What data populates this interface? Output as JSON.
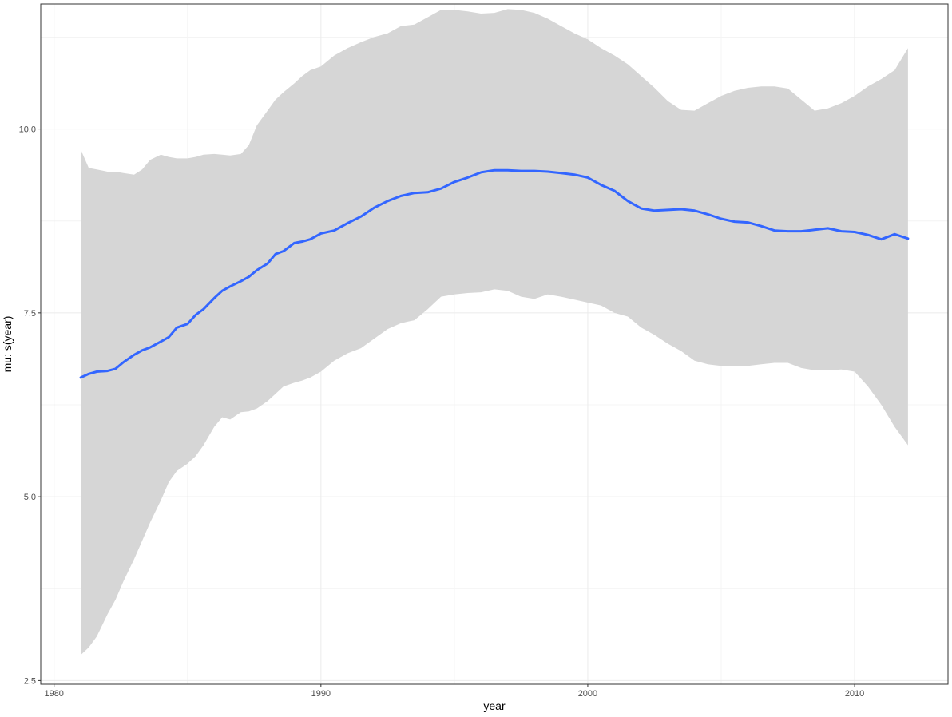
{
  "chart_data": {
    "type": "line",
    "title": "",
    "xlabel": "year",
    "ylabel": "mu: s(year)",
    "xlim": [
      1979.5,
      2013.5
    ],
    "ylim": [
      2.45,
      11.7
    ],
    "x_ticks": [
      1980,
      1990,
      2000,
      2010
    ],
    "x_tick_labels": [
      "1980",
      "1990",
      "2000",
      "2010"
    ],
    "y_ticks": [
      2.5,
      5.0,
      7.5,
      10.0
    ],
    "y_tick_labels": [
      "2.5",
      "5.0",
      "7.5",
      "10.0"
    ],
    "grid": true,
    "legend": "none",
    "colors": {
      "line": "#3366ff",
      "ribbon": "#d6d6d6",
      "grid_major": "#ebebeb",
      "grid_minor": "#f4f4f4",
      "panel_border": "#333333"
    },
    "series": [
      {
        "x": [
          1981,
          1981.3,
          1981.6,
          1982,
          1982.3,
          1982.6,
          1983,
          1983.3,
          1983.6,
          1984,
          1984.3,
          1984.6,
          1985,
          1985.3,
          1985.6,
          1986,
          1986.3,
          1986.6,
          1987,
          1987.3,
          1987.6,
          1988,
          1988.3,
          1988.6,
          1989,
          1989.3,
          1989.6,
          1990,
          1990.5,
          1991,
          1991.5,
          1992,
          1992.5,
          1993,
          1993.5,
          1994,
          1994.5,
          1995,
          1995.5,
          1996,
          1996.5,
          1997,
          1997.5,
          1998,
          1998.5,
          1999,
          1999.5,
          2000,
          2000.5,
          2001,
          2001.5,
          2002,
          2002.5,
          2003,
          2003.5,
          2004,
          2004.5,
          2005,
          2005.5,
          2006,
          2006.5,
          2007,
          2007.5,
          2008,
          2008.5,
          2009,
          2009.5,
          2010,
          2010.5,
          2011,
          2011.5,
          2012
        ],
        "y": [
          6.62,
          6.67,
          6.7,
          6.71,
          6.74,
          6.83,
          6.93,
          6.99,
          7.03,
          7.11,
          7.17,
          7.3,
          7.35,
          7.47,
          7.55,
          7.7,
          7.8,
          7.86,
          7.93,
          7.99,
          8.08,
          8.17,
          8.3,
          8.34,
          8.45,
          8.47,
          8.5,
          8.58,
          8.62,
          8.72,
          8.81,
          8.93,
          9.02,
          9.09,
          9.13,
          9.14,
          9.19,
          9.28,
          9.34,
          9.41,
          9.44,
          9.44,
          9.43,
          9.43,
          9.42,
          9.4,
          9.38,
          9.34,
          9.24,
          9.16,
          9.02,
          8.92,
          8.89,
          8.9,
          8.91,
          8.89,
          8.84,
          8.78,
          8.74,
          8.73,
          8.68,
          8.62,
          8.61,
          8.61,
          8.63,
          8.65,
          8.61,
          8.6,
          8.56,
          8.5,
          8.57,
          8.51
        ]
      },
      {
        "x": [
          1981,
          1981.3,
          1981.6,
          1982,
          1982.3,
          1982.6,
          1983,
          1983.3,
          1983.6,
          1984,
          1984.3,
          1984.6,
          1985,
          1985.3,
          1985.6,
          1986,
          1986.3,
          1986.6,
          1987,
          1987.3,
          1987.6,
          1988,
          1988.3,
          1988.6,
          1989,
          1989.3,
          1989.6,
          1990,
          1990.5,
          1991,
          1991.5,
          1992,
          1992.5,
          1993,
          1993.5,
          1994,
          1994.5,
          1995,
          1995.5,
          1996,
          1996.5,
          1997,
          1997.5,
          1998,
          1998.5,
          1999,
          1999.5,
          2000,
          2000.5,
          2001,
          2001.5,
          2002,
          2002.5,
          2003,
          2003.5,
          2004,
          2004.5,
          2005,
          2005.5,
          2006,
          2006.5,
          2007,
          2007.5,
          2008,
          2008.5,
          2009,
          2009.5,
          2010,
          2010.5,
          2011,
          2011.5,
          2012
        ],
        "y_lower": [
          2.85,
          2.95,
          3.1,
          3.4,
          3.6,
          3.85,
          4.15,
          4.4,
          4.65,
          4.95,
          5.2,
          5.35,
          5.45,
          5.55,
          5.7,
          5.95,
          6.08,
          6.05,
          6.15,
          6.16,
          6.2,
          6.3,
          6.4,
          6.5,
          6.55,
          6.58,
          6.62,
          6.7,
          6.85,
          6.95,
          7.02,
          7.15,
          7.28,
          7.36,
          7.4,
          7.55,
          7.72,
          7.75,
          7.77,
          7.78,
          7.82,
          7.8,
          7.72,
          7.69,
          7.75,
          7.72,
          7.68,
          7.64,
          7.6,
          7.5,
          7.45,
          7.3,
          7.2,
          7.08,
          6.98,
          6.85,
          6.8,
          6.78,
          6.78,
          6.78,
          6.8,
          6.82,
          6.82,
          6.75,
          6.72,
          6.72,
          6.73,
          6.7,
          6.5,
          6.25,
          5.95,
          5.7
        ],
        "y_upper": [
          9.72,
          9.47,
          9.45,
          9.42,
          9.42,
          9.4,
          9.38,
          9.45,
          9.58,
          9.65,
          9.62,
          9.6,
          9.6,
          9.62,
          9.65,
          9.66,
          9.65,
          9.64,
          9.66,
          9.78,
          10.05,
          10.25,
          10.4,
          10.5,
          10.62,
          10.72,
          10.8,
          10.85,
          11.0,
          11.1,
          11.18,
          11.25,
          11.3,
          11.4,
          11.42,
          11.52,
          11.62,
          11.62,
          11.6,
          11.57,
          11.58,
          11.63,
          11.62,
          11.58,
          11.5,
          11.4,
          11.3,
          11.22,
          11.1,
          11.0,
          10.88,
          10.72,
          10.56,
          10.38,
          10.26,
          10.25,
          10.35,
          10.45,
          10.52,
          10.56,
          10.58,
          10.58,
          10.55,
          10.4,
          10.25,
          10.28,
          10.35,
          10.45,
          10.58,
          10.68,
          10.8,
          11.1
        ]
      }
    ]
  }
}
